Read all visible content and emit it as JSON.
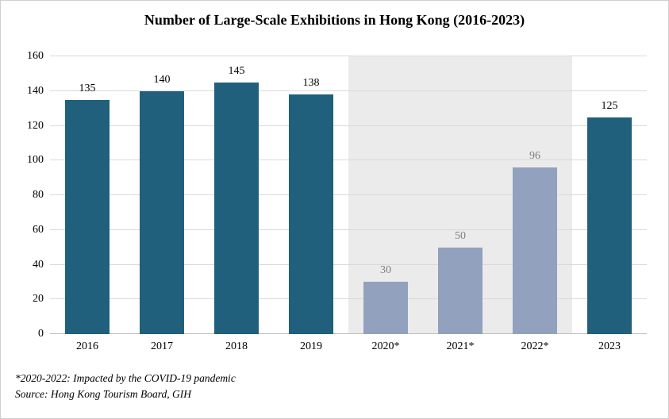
{
  "chart_data": {
    "type": "bar",
    "title": "Number of Large-Scale Exhibitions in Hong Kong (2016-2023)",
    "categories": [
      "2016",
      "2017",
      "2018",
      "2019",
      "2020*",
      "2021*",
      "2022*",
      "2023"
    ],
    "values": [
      135,
      140,
      145,
      138,
      30,
      50,
      96,
      125
    ],
    "xlabel": "",
    "ylabel": "",
    "ylim": [
      0,
      160
    ],
    "yticks": [
      0,
      20,
      40,
      60,
      80,
      100,
      120,
      140,
      160
    ],
    "grid": true,
    "legend": "none",
    "covid_indices": [
      4,
      5,
      6
    ],
    "annotations": [
      "*2020-2022: Impacted by the COVID-19 pandemic",
      "Source: Hong Kong Tourism Board, GIH"
    ],
    "colors": {
      "bar_normal": "#20607C",
      "bar_covid": "#92A1BD",
      "value_label_normal": "#000000",
      "value_label_covid": "#7F7F7F",
      "covid_shade": "#EBEBEB",
      "gridline": "#D9D9D9",
      "axis": "#BFBFBF"
    }
  }
}
